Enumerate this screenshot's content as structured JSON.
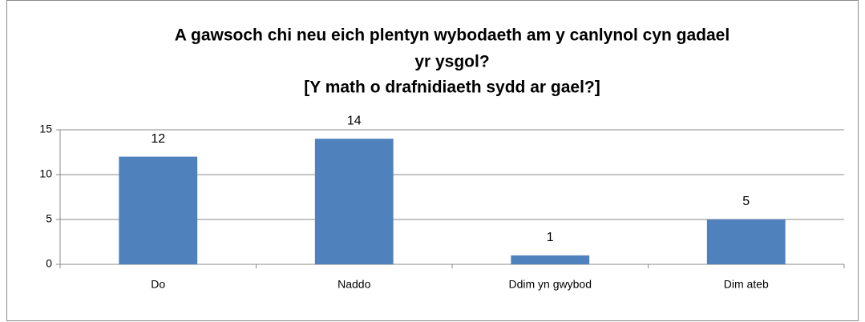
{
  "chart_data": {
    "type": "bar",
    "title": [
      "A gawsoch chi neu eich plentyn wybodaeth am y canlynol cyn gadael",
      "yr ysgol?",
      "[Y math o drafnidiaeth sydd ar gael?]"
    ],
    "categories": [
      "Do",
      "Naddo",
      "Ddim yn gwybod",
      "Dim ateb"
    ],
    "values": [
      12,
      14,
      1,
      5
    ],
    "color": "#4f81bd",
    "ylim": [
      0,
      15
    ],
    "yticks": [
      0,
      5,
      10,
      15
    ],
    "grid": true
  }
}
